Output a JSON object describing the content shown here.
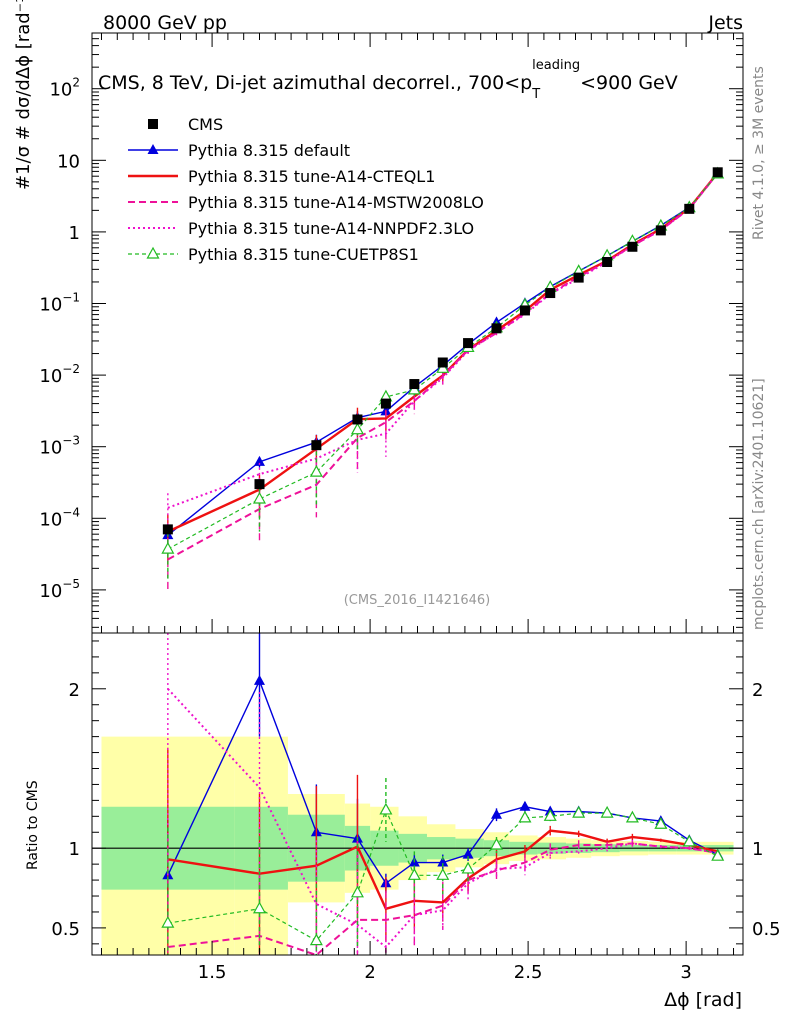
{
  "header": {
    "left": "8000 GeV pp",
    "right": "Jets"
  },
  "side": {
    "top": "Rivet 4.1.0, ≥ 3M events",
    "bottom": "mcplots.cern.ch [arXiv:2401.10621]"
  },
  "chart_data": {
    "type": "line",
    "title": {
      "main": "CMS, 8 TeV, Di-jet azimuthal decorrel., 700<p",
      "sup": "leading",
      "sub": "T",
      "end": "<900 GeV"
    },
    "analysis_id": "(CMS_2016_I1421646)",
    "xlabel": "Δϕ [rad]",
    "ylabel": {
      "upper": "#1/σ # dσ/dΔϕ [rad⁻¹]",
      "lower": "Ratio to CMS"
    },
    "xlim": [
      1.12,
      3.18
    ],
    "ylim_upper": [
      2.5e-06,
      600
    ],
    "ylim_lower": [
      0.33,
      2.35
    ],
    "x_ticks": [
      {
        "v": 1.5,
        "label": "1.5"
      },
      {
        "v": 2,
        "label": "2"
      },
      {
        "v": 2.5,
        "label": "2.5"
      },
      {
        "v": 3,
        "label": "3"
      }
    ],
    "y_ticks_upper": [
      {
        "v": 1e-05,
        "base": "10",
        "exp": "−5"
      },
      {
        "v": 0.0001,
        "base": "10",
        "exp": "−4"
      },
      {
        "v": 0.001,
        "base": "10",
        "exp": "−3"
      },
      {
        "v": 0.01,
        "base": "10",
        "exp": "−2"
      },
      {
        "v": 0.1,
        "base": "10",
        "exp": "−1"
      },
      {
        "v": 1,
        "base": "1",
        "exp": ""
      },
      {
        "v": 10,
        "base": "10",
        "exp": ""
      },
      {
        "v": 100,
        "base": "10",
        "exp": "2"
      }
    ],
    "y_ticks_lower": [
      {
        "v": 0.5,
        "label": "0.5"
      },
      {
        "v": 1,
        "label": "1"
      },
      {
        "v": 2,
        "label": "2"
      }
    ],
    "x": [
      1.36,
      1.65,
      1.83,
      1.96,
      2.05,
      2.14,
      2.23,
      2.31,
      2.4,
      2.49,
      2.57,
      2.66,
      2.75,
      2.83,
      2.92,
      3.01,
      3.1
    ],
    "band_edges": [
      1.15,
      1.57,
      1.74,
      1.92,
      2.0,
      2.09,
      2.18,
      2.27,
      2.36,
      2.44,
      2.53,
      2.62,
      2.7,
      2.79,
      2.88,
      2.97,
      3.05,
      3.15
    ],
    "band_stat": [
      0.26,
      0.26,
      0.21,
      0.14,
      0.11,
      0.09,
      0.07,
      0.06,
      0.05,
      0.04,
      0.035,
      0.03,
      0.025,
      0.02,
      0.02,
      0.02,
      0.02
    ],
    "band_total": [
      0.7,
      0.7,
      0.34,
      0.28,
      0.26,
      0.2,
      0.15,
      0.12,
      0.1,
      0.08,
      0.07,
      0.06,
      0.05,
      0.045,
      0.04,
      0.04,
      0.04
    ],
    "series": [
      {
        "name": "CMS",
        "kind": "data",
        "color": "#000000",
        "values": [
          7e-05,
          0.0003,
          0.00105,
          0.0024,
          0.004,
          0.0075,
          0.015,
          0.028,
          0.045,
          0.08,
          0.14,
          0.23,
          0.38,
          0.62,
          1.05,
          2.1,
          6.8
        ]
      },
      {
        "name": "Pythia 8.315 default",
        "color": "#0000dd",
        "dash": "",
        "marker": "tri-filled",
        "width": 1.4,
        "ratio": [
          0.83,
          2.05,
          1.1,
          1.06,
          0.78,
          0.91,
          0.91,
          0.96,
          1.21,
          1.26,
          1.23,
          1.23,
          1.22,
          1.19,
          1.17,
          1.05,
          0.96
        ],
        "ratio_err": [
          0.35,
          0.35,
          0.3,
          0.25,
          0.06,
          0.05,
          0.05,
          0.04,
          0.04,
          0.03,
          0.02,
          0.02,
          0.02,
          0.01,
          0.01,
          0.01,
          0.01
        ]
      },
      {
        "name": "Pythia 8.315 tune-A14-CTEQL1",
        "color": "#ee1111",
        "dash": "",
        "marker": "",
        "width": 2.4,
        "ratio": [
          0.93,
          0.84,
          0.89,
          1.01,
          0.62,
          0.67,
          0.66,
          0.81,
          0.93,
          0.98,
          1.11,
          1.09,
          1.04,
          1.07,
          1.05,
          1.02,
          0.98
        ],
        "ratio_err": [
          0.7,
          0.5,
          0.5,
          0.45,
          0.2,
          0.17,
          0.12,
          0.08,
          0.06,
          0.04,
          0.03,
          0.02,
          0.02,
          0.02,
          0.01,
          0.01,
          0.01
        ]
      },
      {
        "name": "Pythia 8.315 tune-A14-MSTW2008LO",
        "color": "#ee1199",
        "dash": "7,4",
        "marker": "",
        "width": 2.0,
        "ratio": [
          0.38,
          0.45,
          0.28,
          0.55,
          0.55,
          0.58,
          0.64,
          0.8,
          0.86,
          0.91,
          0.99,
          1.02,
          1.02,
          1.03,
          1.01,
          1.0,
          0.97
        ],
        "ratio_err": [
          0.7,
          0.4,
          0.4,
          0.5,
          0.25,
          0.2,
          0.15,
          0.1,
          0.06,
          0.05,
          0.04,
          0.03,
          0.02,
          0.02,
          0.01,
          0.01,
          0.01
        ]
      },
      {
        "name": "Pythia 8.315 tune-A14-NNPDF2.3LO",
        "color": "#ee11cc",
        "dash": "2,3",
        "marker": "",
        "width": 2.0,
        "ratio": [
          2.0,
          1.38,
          0.65,
          0.52,
          0.38,
          0.58,
          0.61,
          0.78,
          0.87,
          0.88,
          0.97,
          0.98,
          1.0,
          1.03,
          1.01,
          1.0,
          0.97
        ],
        "ratio_err": [
          1.2,
          0.6,
          0.4,
          0.4,
          0.2,
          0.18,
          0.14,
          0.1,
          0.06,
          0.05,
          0.04,
          0.03,
          0.02,
          0.02,
          0.01,
          0.01,
          0.01
        ]
      },
      {
        "name": "Pythia 8.315 tune-CUETP8S1",
        "color": "#22bb22",
        "dash": "4,3",
        "marker": "tri-open",
        "width": 1.2,
        "ratio": [
          0.53,
          0.62,
          0.42,
          0.72,
          1.24,
          0.83,
          0.83,
          0.87,
          1.02,
          1.19,
          1.2,
          1.22,
          1.22,
          1.19,
          1.15,
          1.04,
          0.95
        ],
        "ratio_err": [
          0.6,
          0.5,
          0.4,
          0.35,
          0.2,
          0.15,
          0.12,
          0.08,
          0.05,
          0.04,
          0.03,
          0.02,
          0.02,
          0.02,
          0.01,
          0.01,
          0.01
        ]
      }
    ]
  }
}
